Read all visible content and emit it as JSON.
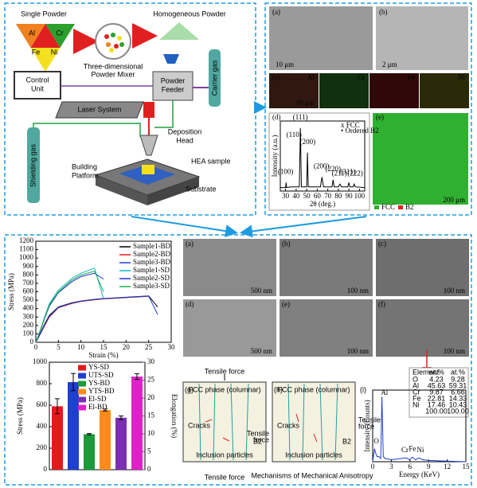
{
  "schematic": {
    "single_powder": "Single Powder",
    "elements": [
      "Al",
      "Cr",
      "Fe",
      "Ni"
    ],
    "homogeneous_powder": "Homogeneous Powder",
    "mixer": [
      "Three-dimensional",
      "Powder Mixer"
    ],
    "control_unit": [
      "Control",
      "Unit"
    ],
    "powder_feeder": [
      "Powder",
      "Feeder"
    ],
    "carrier_gas": "Carrier gas",
    "laser_system": "Laser System",
    "deposition_head": [
      "Deposition",
      "Head"
    ],
    "hea_sample": "HEA sample",
    "building_platform": [
      "Building",
      "Platform"
    ],
    "substrate": "Substrate",
    "shielding_gas": "Shielding gas"
  },
  "microstructure": {
    "labels": [
      "(a)",
      "(b)",
      "(c)",
      "(d)",
      "(e)"
    ],
    "scale_a": "10 μm",
    "scale_b": "2 μm",
    "maps": [
      "Al",
      "Cr",
      "Fe",
      "Ni"
    ],
    "map_scale": "10 μm",
    "phase_legend": [
      "FCC",
      "B2"
    ],
    "phase_scale": "200 μm"
  },
  "chart_data": [
    {
      "type": "line",
      "x_label": "Strain (%)",
      "y_label": "Stress (MPa)",
      "x": [
        0,
        1,
        2,
        3,
        5,
        8,
        10,
        13,
        15,
        20,
        25,
        27
      ],
      "xlim": [
        0,
        30
      ],
      "xticks": [
        0,
        5,
        10,
        15,
        20,
        25,
        30
      ],
      "ylim": [
        0,
        1200
      ],
      "yticks": [
        0,
        100,
        200,
        300,
        400,
        500,
        600,
        700,
        800,
        900,
        1000,
        1100,
        1200
      ],
      "series": [
        {
          "name": "Sample1-BD",
          "color": "#000000",
          "values": [
            0,
            110,
            220,
            320,
            420,
            470,
            490,
            510,
            520,
            535,
            550,
            420
          ]
        },
        {
          "name": "Sample2-BD",
          "color": "#e31a1c",
          "values": [
            0,
            100,
            200,
            300,
            410,
            460,
            485,
            505,
            515,
            530,
            545,
            null
          ]
        },
        {
          "name": "Sample3-BD",
          "color": "#1f3fd0",
          "values": [
            0,
            100,
            210,
            310,
            415,
            465,
            488,
            508,
            518,
            532,
            548,
            330
          ]
        },
        {
          "name": "Sample1-SD",
          "color": "#17b8c8",
          "values": [
            0,
            150,
            310,
            460,
            620,
            760,
            820,
            880,
            520,
            null,
            null,
            null
          ]
        },
        {
          "name": "Sample2-SD",
          "color": "#2233cc",
          "values": [
            0,
            140,
            290,
            430,
            590,
            720,
            780,
            820,
            750,
            null,
            null,
            null
          ]
        },
        {
          "name": "Sample3-SD",
          "color": "#22b14c",
          "values": [
            0,
            145,
            300,
            445,
            600,
            740,
            800,
            845,
            600,
            null,
            null,
            null
          ]
        }
      ]
    },
    {
      "type": "bar",
      "y_label": "Stress (MPa)",
      "y2_label": "Elongation (%)",
      "ylim": [
        0,
        1000
      ],
      "yticks": [
        0,
        200,
        400,
        600,
        800,
        1000
      ],
      "y2lim": [
        0,
        30
      ],
      "y2ticks": [
        0,
        5,
        10,
        15,
        20,
        25,
        30
      ],
      "series": [
        {
          "name": "YS-SD",
          "color": "#e31a1c",
          "values": [
            590
          ],
          "errors": [
            70
          ]
        },
        {
          "name": "UTS-SD",
          "color": "#1f3fd0",
          "values": [
            815
          ],
          "errors": [
            80
          ]
        },
        {
          "name": "YS-BD",
          "color": "#1a9a3a",
          "values": [
            330
          ],
          "errors": [
            6
          ]
        },
        {
          "name": "YTS-BD",
          "color": "#ff8c1a",
          "values": [
            555
          ],
          "errors": [
            10
          ]
        },
        {
          "name": "El-SD",
          "color": "#7a2fb0",
          "values": [
            14.5
          ],
          "errors": [
            0.5
          ],
          "axis": "y2"
        },
        {
          "name": "El-BD",
          "color": "#e020c8",
          "values": [
            26
          ],
          "errors": [
            0.8
          ],
          "axis": "y2"
        }
      ]
    },
    {
      "type": "line",
      "x_label": "2θ (deg.)",
      "y_label": "Intensity (a.u.)",
      "x": [
        25,
        30,
        30.5,
        31,
        35,
        43,
        44,
        45,
        50,
        50.7,
        51.5,
        63,
        64.5,
        66,
        74,
        75,
        76,
        80,
        81.5,
        83,
        89,
        90,
        91,
        94,
        95,
        96,
        105
      ],
      "xlim": [
        25,
        105
      ],
      "xticks": [
        30,
        40,
        50,
        60,
        70,
        80,
        90,
        100
      ],
      "ylim": [
        0,
        100
      ],
      "series": [
        {
          "color": "#000000",
          "values": [
            5,
            5,
            12,
            5,
            6,
            6,
            90,
            6,
            6,
            55,
            6,
            6,
            20,
            6,
            6,
            16,
            6,
            6,
            10,
            6,
            6,
            12,
            6,
            6,
            10,
            6,
            5
          ]
        }
      ],
      "legend_labels": [
        "x FCC",
        "• Ordered B2"
      ],
      "annotations": [
        {
          "text": "(100)",
          "x": 30,
          "y": 22
        },
        {
          "text": "(110)",
          "x": 38,
          "y": 75
        },
        {
          "text": "(111)",
          "x": 44,
          "y": 100
        },
        {
          "text": "(200)",
          "x": 51,
          "y": 65
        },
        {
          "text": "(200)",
          "x": 64,
          "y": 30
        },
        {
          "text": "(220)",
          "x": 75,
          "y": 26
        },
        {
          "text": "(211)",
          "x": 81,
          "y": 20
        },
        {
          "text": "(311)",
          "x": 89,
          "y": 22
        },
        {
          "text": "(222)",
          "x": 96,
          "y": 20
        }
      ]
    },
    {
      "type": "line",
      "x_label": "Energy (KeV)",
      "y_label": "Intensity (Counts)",
      "x": [
        0,
        0.3,
        0.52,
        0.7,
        1.0,
        1.3,
        1.49,
        1.7,
        2,
        3,
        5.41,
        5.9,
        6.4,
        6.9,
        7.47,
        8,
        9,
        12,
        15
      ],
      "xlim": [
        0,
        15
      ],
      "xticks": [
        0,
        3,
        6,
        9,
        12,
        15
      ],
      "ylim": [
        0,
        110
      ],
      "series": [
        {
          "color": "#1f3fd0",
          "values": [
            0,
            20,
            12,
            8,
            8,
            5,
            100,
            8,
            5,
            3,
            6,
            3,
            7,
            3,
            6,
            3,
            2,
            1,
            0
          ]
        }
      ],
      "annotations": [
        {
          "text": "O",
          "x": 0.6,
          "y": 26
        },
        {
          "text": "Al",
          "x": 1.9,
          "y": 100
        },
        {
          "text": "Cr",
          "x": 5.2,
          "y": 12
        },
        {
          "text": "Fe",
          "x": 6.4,
          "y": 14
        },
        {
          "text": "Ni",
          "x": 7.7,
          "y": 12
        }
      ]
    }
  ],
  "micrographs": {
    "labels": [
      "(a)",
      "(b)",
      "(c)",
      "(d)",
      "(e)",
      "(f)"
    ],
    "scales": [
      "500 nm",
      "100 nm",
      "100 nm",
      "500 nm",
      "100 nm",
      "100 nm"
    ]
  },
  "mechanisms": {
    "title": "Mechanisms of Mechanical Anisotropy",
    "g": {
      "label": "(g)",
      "top": "Tensile force",
      "bottom": "Tensile force",
      "phase": "FCC phase (columnar)",
      "cracks": "Cracks",
      "inclusion": "Inclusion particles",
      "b2": "B2"
    },
    "h": {
      "label": "(h)",
      "left": [
        "Tensile",
        "force"
      ],
      "right": [
        "Tensile",
        "force"
      ],
      "phase": "FCC phase (columnar)",
      "cracks": "Cracks",
      "inclusion": "Inclusion particles",
      "b2": "B2"
    },
    "i_label": "(i)"
  },
  "eds_table": {
    "header": [
      "Element",
      "wt.%",
      "at.%"
    ],
    "rows": [
      [
        "O",
        "4.23",
        "9.28"
      ],
      [
        "Al",
        "45.63",
        "59.31"
      ],
      [
        "Cr",
        "9.87",
        "6.66"
      ],
      [
        "Fe",
        "22.81",
        "14.33"
      ],
      [
        "Ni",
        "17.46",
        "10.43"
      ],
      [
        "",
        "100.00",
        "100.00"
      ]
    ]
  }
}
